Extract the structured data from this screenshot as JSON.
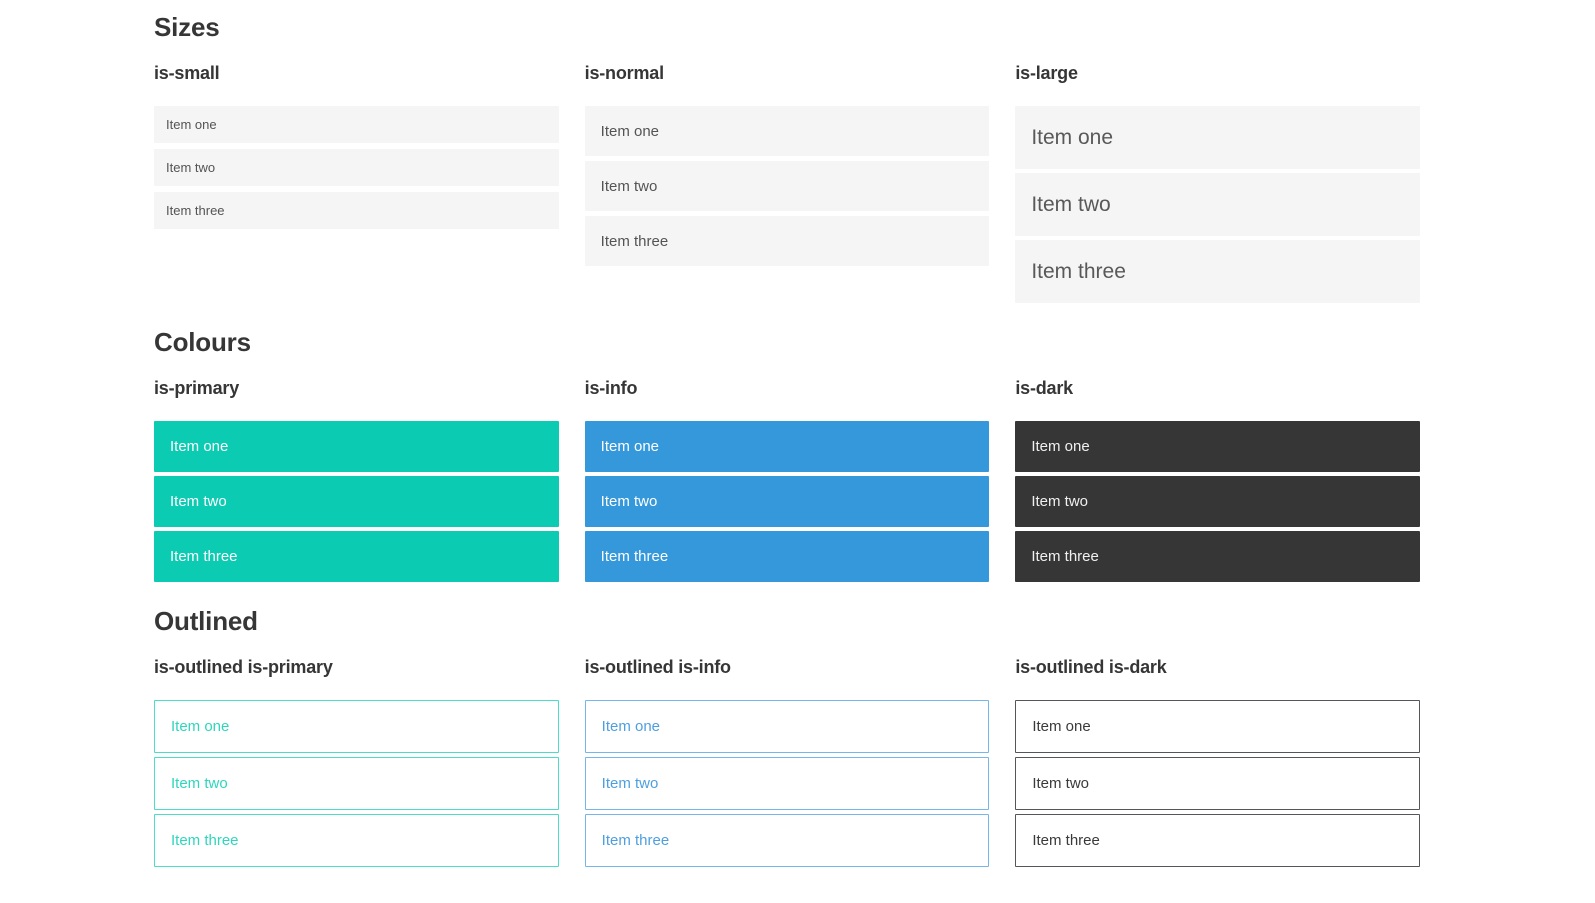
{
  "colors": {
    "heading": "#363636",
    "item-bg": "#f5f5f5",
    "item-text": "#545454",
    "item-text-large": "#595959",
    "primary-bg": "#0bcbb2",
    "info-bg": "#3498db",
    "dark-bg": "#363636",
    "on-dark": "#f0f0f0",
    "primary-outline-border": "#4cdcc8",
    "primary-outline-text": "#2fd6bd",
    "info-outline-border": "#77b6e8",
    "info-outline-text": "#4e9fe0",
    "dark-outline-border": "#54565a",
    "dark-outline-text": "#3a3a3a"
  },
  "sections": [
    {
      "title": "Sizes",
      "groups": [
        {
          "label": "is-small",
          "items": [
            "Item one",
            "Item two",
            "Item three"
          ]
        },
        {
          "label": "is-normal",
          "items": [
            "Item one",
            "Item two",
            "Item three"
          ]
        },
        {
          "label": "is-large",
          "items": [
            "Item one",
            "Item two",
            "Item three"
          ]
        }
      ]
    },
    {
      "title": "Colours",
      "groups": [
        {
          "label": "is-primary",
          "items": [
            "Item one",
            "Item two",
            "Item three"
          ]
        },
        {
          "label": "is-info",
          "items": [
            "Item one",
            "Item two",
            "Item three"
          ]
        },
        {
          "label": "is-dark",
          "items": [
            "Item one",
            "Item two",
            "Item three"
          ]
        }
      ]
    },
    {
      "title": "Outlined",
      "groups": [
        {
          "label": "is-outlined is-primary",
          "items": [
            "Item one",
            "Item two",
            "Item three"
          ]
        },
        {
          "label": "is-outlined is-info",
          "items": [
            "Item one",
            "Item two",
            "Item three"
          ]
        },
        {
          "label": "is-outlined is-dark",
          "items": [
            "Item one",
            "Item two",
            "Item three"
          ]
        }
      ]
    }
  ]
}
